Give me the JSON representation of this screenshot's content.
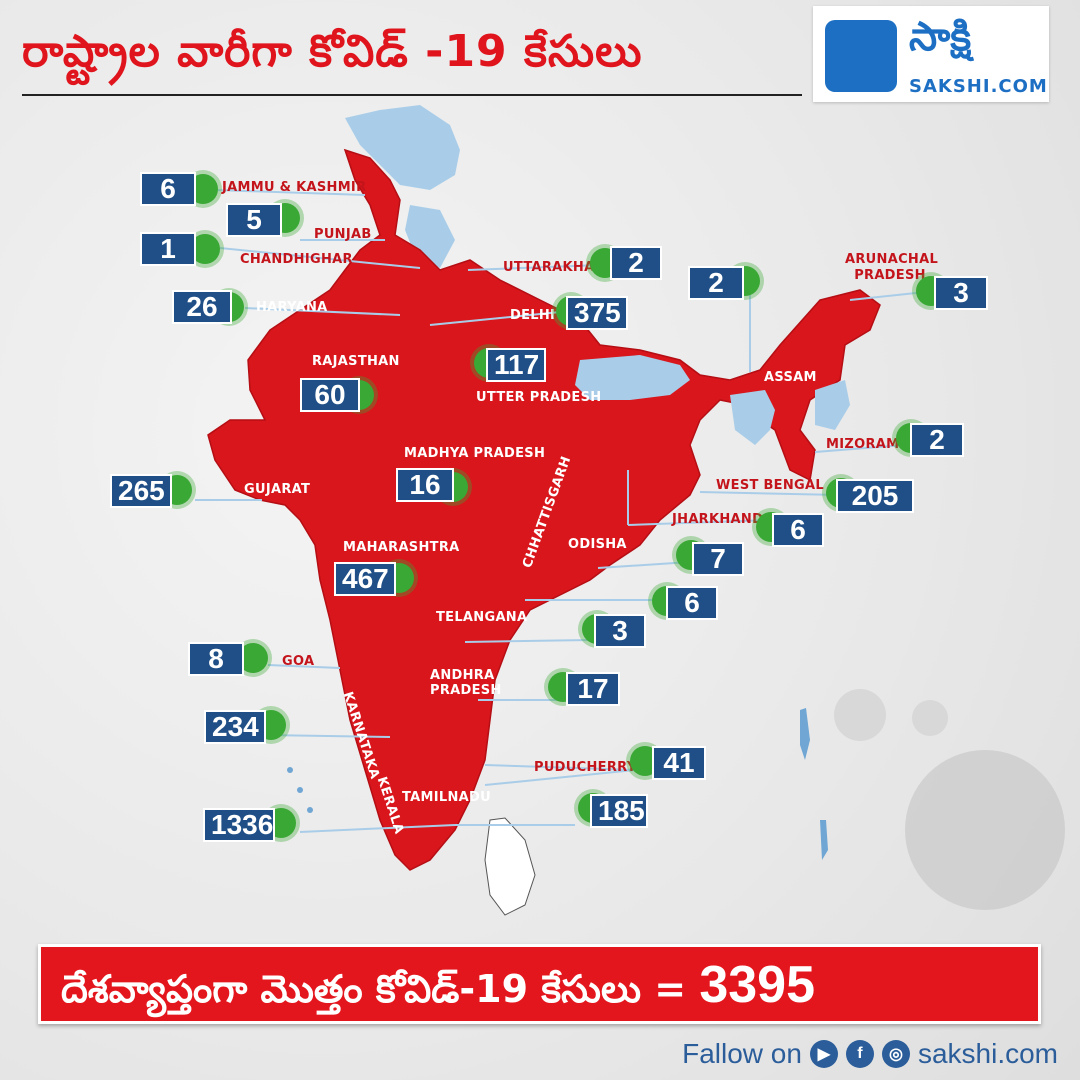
{
  "header": {
    "title": "రాష్ట్రాల వారీగా కోవిడ్ -19 కేసులు",
    "logo_name": "సాక్షి",
    "logo_url": "SAKSHI.COM"
  },
  "states": [
    {
      "name": "JAMMU & KASHMIR",
      "cases": "6"
    },
    {
      "name": "PUNJAB",
      "cases": "5"
    },
    {
      "name": "CHANDHIGHAR",
      "cases": "1"
    },
    {
      "name": "HARYANA",
      "cases": "26"
    },
    {
      "name": "RAJASTHAN",
      "cases": "60"
    },
    {
      "name": "GUJARAT",
      "cases": "265"
    },
    {
      "name": "MADHYA PRADESH",
      "cases": "16"
    },
    {
      "name": "MAHARASHTRA",
      "cases": "467"
    },
    {
      "name": "GOA",
      "cases": "8"
    },
    {
      "name": "KARNATAKA",
      "cases": "234"
    },
    {
      "name": "KERALA",
      "cases": "1336"
    },
    {
      "name": "TAMILNADU",
      "cases": "185"
    },
    {
      "name": "PUDUCHERRY",
      "cases": "41"
    },
    {
      "name": "ANDHRA PRADESH",
      "cases": "17"
    },
    {
      "name": "TELANGANA",
      "cases": "3"
    },
    {
      "name": "CHHATTISGARH",
      "cases": "6"
    },
    {
      "name": "ODISHA",
      "cases": "7"
    },
    {
      "name": "JHARKHAND",
      "cases": "6"
    },
    {
      "name": "WEST BENGAL",
      "cases": "205"
    },
    {
      "name": "MIZORAM",
      "cases": "2"
    },
    {
      "name": "ASSAM",
      "cases": "2"
    },
    {
      "name": "ARUNACHAL PRADESH",
      "cases": "3"
    },
    {
      "name": "UTTARAKHAND",
      "cases": "2"
    },
    {
      "name": "DELHI",
      "cases": "375"
    },
    {
      "name": "UTTER PRADESH",
      "cases": "117"
    }
  ],
  "total": {
    "label": "దేశవ్యాప్తంగా మొత్తం కోవిడ్-19 కేసులు =",
    "value": "3395"
  },
  "footer": {
    "follow_label": "Fallow on",
    "site": "sakshi.com",
    "icons": [
      "youtube-icon",
      "facebook-icon",
      "instagram-icon"
    ]
  },
  "colors": {
    "map_red": "#d8161c",
    "badge_blue": "#1f4f86",
    "virus_green": "#3aa835",
    "light_blue": "#a9cde8"
  }
}
